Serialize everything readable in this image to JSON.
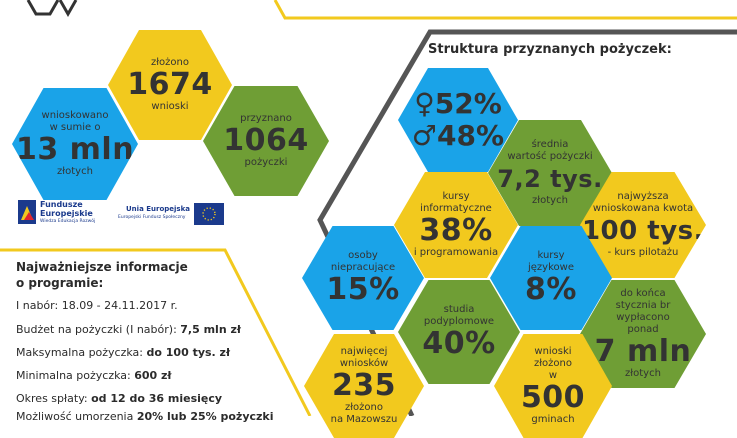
{
  "left_hexes": {
    "submitted": {
      "top": "złożono",
      "value": "1674",
      "bottom": "wnioski"
    },
    "requested": {
      "top1": "wnioskowano",
      "top2": "w sumie o",
      "value": "13 mln",
      "bottom": "złotych"
    },
    "granted": {
      "top": "przyznano",
      "value": "1064",
      "bottom": "pożyczki"
    }
  },
  "logos": {
    "fe_line1": "Fundusze",
    "fe_line2": "Europejskie",
    "fe_line3": "Wiedza Edukacja Rozwój",
    "eu_line1": "Unia Europejska",
    "eu_line2": "Europejski Fundusz Społeczny"
  },
  "info": {
    "title1": "Najważniejsze informacje",
    "title2": "o programie:",
    "line1": "I nabór: 18.09 - 24.11.2017 r.",
    "line2_label": "Budżet na pożyczki (I nabór): ",
    "line2_value": "7,5 mln zł",
    "line3_label": "Maksymalna pożyczka: ",
    "line3_value": "do 100 tys. zł",
    "line4_label": "Minimalna pożyczka: ",
    "line4_value": "600 zł",
    "line5_label": "Okres spłaty: ",
    "line5_value": "od 12 do 36 miesięcy",
    "line6_label": "Możliwość umorzenia ",
    "line6_value": "20% lub 25% pożyczki"
  },
  "structure": {
    "title": "Struktura przyznanych pożyczek:",
    "gender": {
      "female": "52%",
      "male": "48%"
    },
    "avg": {
      "top1": "średnia",
      "top2": "wartość pożyczki",
      "value": "7,2 tys.",
      "bottom": "złotych"
    },
    "it": {
      "top1": "kursy",
      "top2": "informatyczne",
      "value": "38%",
      "bottom": "i programowania"
    },
    "max": {
      "top1": "najwyższa",
      "top2": "wnioskowana kwota",
      "value": "100 tys.",
      "bottom": "- kurs pilotażu"
    },
    "unemployed": {
      "top1": "osoby",
      "top2": "niepracujące",
      "value": "15%"
    },
    "lang": {
      "top1": "kursy",
      "top2": "językowe",
      "value": "8%"
    },
    "postgrad": {
      "top1": "studia",
      "top2": "podyplomowe",
      "value": "40%"
    },
    "paid": {
      "top1": "do końca",
      "top2": "stycznia br",
      "top3": "wypłacono",
      "top4": "ponad",
      "value": "7 mln",
      "bottom": "złotych"
    },
    "most": {
      "top1": "najwięcej",
      "top2": "wniosków",
      "value": "235",
      "bottom1": "złożono",
      "bottom2": "na Mazowszu"
    },
    "communes": {
      "top1": "wnioski",
      "top2": "złożono",
      "top3": "w",
      "value": "500",
      "bottom": "gminach"
    }
  },
  "colors": {
    "blue": "#1aa3e8",
    "yellow": "#f2c91e",
    "green": "#6f9e35",
    "dark": "#2b2b2b"
  }
}
